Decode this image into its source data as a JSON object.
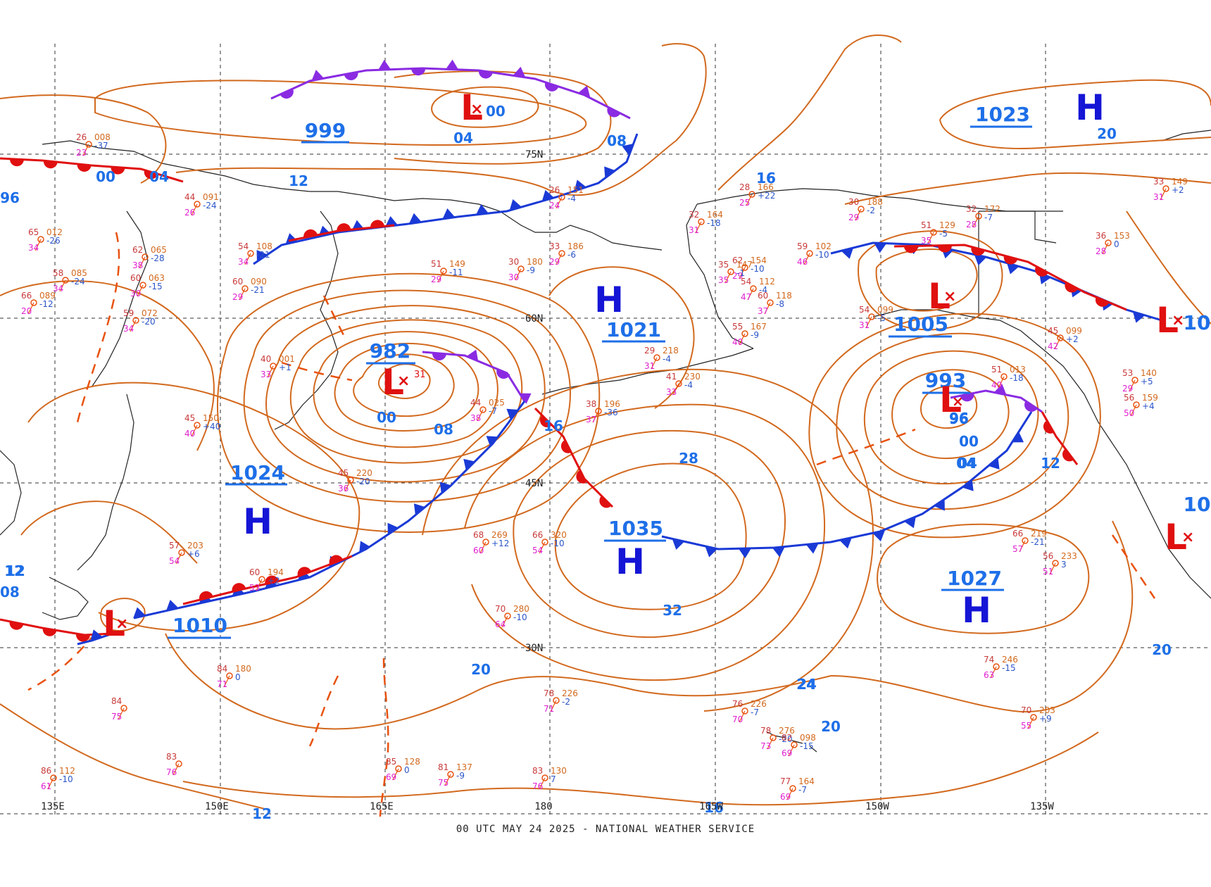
{
  "caption": "00 UTC MAY 24 2025 - NATIONAL WEATHER SERVICE",
  "colors": {
    "isobar": "#d2691e",
    "isobar_label": "#1e6fe8",
    "high": "#1515d6",
    "low": "#e01010",
    "cold_front": "#1a3ad6",
    "warm_front": "#e01010",
    "occluded_front": "#8a2be2",
    "trough": "#e8520f"
  },
  "latitude_labels": [
    "75N",
    "60N",
    "45N",
    "30N"
  ],
  "longitude_labels": [
    "135E",
    "150E",
    "165E",
    "180",
    "165W",
    "150W",
    "135W"
  ],
  "pressure_centers": [
    {
      "type": "H",
      "value": "1024"
    },
    {
      "type": "H",
      "value": "1021"
    },
    {
      "type": "H",
      "value": "1035"
    },
    {
      "type": "H",
      "value": "1027"
    },
    {
      "type": "H",
      "value": "1023"
    },
    {
      "type": "L",
      "value": "982"
    },
    {
      "type": "L",
      "value": "999"
    },
    {
      "type": "L",
      "value": "1005"
    },
    {
      "type": "L",
      "value": "993"
    },
    {
      "type": "L",
      "value": "1010"
    }
  ],
  "isobar_labels": [
    "00",
    "04",
    "08",
    "12",
    "16",
    "20",
    "24",
    "28",
    "32",
    "96",
    "00",
    "04",
    "08",
    "12",
    "16",
    "20",
    "24",
    "20",
    "16",
    "12",
    "04",
    "00",
    "08",
    "20",
    "16",
    "00",
    "96",
    "04",
    "12"
  ],
  "minor_center_labels": [
    "00",
    "31",
    "96",
    "H",
    "L",
    "L",
    "H"
  ],
  "edge_labels": [
    "10",
    "10",
    "12",
    "08"
  ],
  "stations": [
    {
      "t": "26",
      "d": "23",
      "p": "008",
      "c": "-37"
    },
    {
      "t": "44",
      "d": "26",
      "p": "091",
      "c": "-24"
    },
    {
      "t": "54",
      "d": "34",
      "p": "108",
      "c": "-21"
    },
    {
      "t": "60",
      "d": "29",
      "p": "090",
      "c": "-21"
    },
    {
      "t": "62",
      "d": "38",
      "p": "065",
      "c": "-28"
    },
    {
      "t": "60",
      "d": "30",
      "p": "063",
      "c": "-15"
    },
    {
      "t": "59",
      "d": "34",
      "p": "072",
      "c": "-20"
    },
    {
      "t": "58",
      "d": "34",
      "p": "085",
      "c": "-24"
    },
    {
      "t": "66",
      "d": "20",
      "p": "089",
      "c": "-12"
    },
    {
      "t": "65",
      "d": "34",
      "p": "012",
      "c": "-26"
    },
    {
      "t": "51",
      "d": "29",
      "p": "149",
      "c": "-11"
    },
    {
      "t": "30",
      "d": "30",
      "p": "180",
      "c": "-9"
    },
    {
      "t": "33",
      "d": "29",
      "p": "186",
      "c": "-6"
    },
    {
      "t": "26",
      "d": "24",
      "p": "151",
      "c": "-4"
    },
    {
      "t": "32",
      "d": "31",
      "p": "164",
      "c": "-18"
    },
    {
      "t": "28",
      "d": "25",
      "p": "166",
      "c": "+22"
    },
    {
      "t": "30",
      "d": "29",
      "p": "188",
      "c": "-2"
    },
    {
      "t": "32",
      "d": "28",
      "p": "172",
      "c": "-7"
    },
    {
      "t": "51",
      "d": "35",
      "p": "129",
      "c": "-5"
    },
    {
      "t": "33",
      "d": "31",
      "p": "149",
      "c": "+2"
    },
    {
      "t": "45",
      "d": "40",
      "p": "150",
      "c": "+40"
    },
    {
      "t": "40",
      "d": "33",
      "p": "001",
      "c": "+1"
    },
    {
      "t": "44",
      "d": "38",
      "p": "025",
      "c": "-7"
    },
    {
      "t": "45",
      "d": "36",
      "p": "220",
      "c": "-20"
    },
    {
      "t": "68",
      "d": "60",
      "p": "269",
      "c": "+12"
    },
    {
      "t": "66",
      "d": "54",
      "p": "320",
      "c": "-10"
    },
    {
      "t": "70",
      "d": "64",
      "p": "280",
      "c": "-10"
    },
    {
      "t": "60",
      "d": "53",
      "p": "194",
      "c": "+2"
    },
    {
      "t": "57",
      "d": "54",
      "p": "203",
      "c": "+6"
    },
    {
      "t": "78",
      "d": "71",
      "p": "226",
      "c": "-2"
    },
    {
      "t": "84",
      "d": "71",
      "p": "180",
      "c": "0"
    },
    {
      "t": "76",
      "d": "70",
      "p": "226",
      "c": "-7"
    },
    {
      "t": "78",
      "d": "73",
      "p": "276",
      "c": "-20"
    },
    {
      "t": "82",
      "d": "69",
      "p": "098",
      "c": "-15"
    },
    {
      "t": "77",
      "d": "69",
      "p": "164",
      "c": "-7"
    },
    {
      "t": "74",
      "d": "63",
      "p": "246",
      "c": "-15"
    },
    {
      "t": "70",
      "d": "55",
      "p": "203",
      "c": "+9"
    },
    {
      "t": "66",
      "d": "57",
      "p": "219",
      "c": "-21"
    },
    {
      "t": "56",
      "d": "51",
      "p": "233",
      "c": "3"
    },
    {
      "t": "51",
      "d": "40",
      "p": "013",
      "c": "-18"
    },
    {
      "t": "54",
      "d": "47",
      "p": "112",
      "c": "-4"
    },
    {
      "t": "62",
      "d": "29",
      "p": "154",
      "c": "-10"
    },
    {
      "t": "59",
      "d": "46",
      "p": "102",
      "c": "-10"
    },
    {
      "t": "54",
      "d": "31",
      "p": "099",
      "c": "-5"
    },
    {
      "t": "36",
      "d": "28",
      "p": "153",
      "c": "0"
    },
    {
      "t": "45",
      "d": "42",
      "p": "099",
      "c": "+2"
    },
    {
      "t": "53",
      "d": "29",
      "p": "140",
      "c": "+5"
    },
    {
      "t": "56",
      "d": "50",
      "p": "159",
      "c": "+4"
    },
    {
      "t": "83",
      "d": "76",
      "p": "130",
      "c": "7"
    },
    {
      "t": "85",
      "d": "69",
      "p": "128",
      "c": "0"
    },
    {
      "t": "81",
      "d": "75",
      "p": "137",
      "c": "-9"
    },
    {
      "t": "86",
      "d": "61",
      "p": "112",
      "c": "-10"
    },
    {
      "t": "84",
      "d": "75",
      "p": "",
      "c": ""
    },
    {
      "t": "83",
      "d": "76",
      "p": "",
      "c": ""
    },
    {
      "t": "41",
      "d": "33",
      "p": "230",
      "c": "-4"
    },
    {
      "t": "38",
      "d": "37",
      "p": "196",
      "c": "-36"
    },
    {
      "t": "29",
      "d": "31",
      "p": "218",
      "c": "-4"
    },
    {
      "t": "35",
      "d": "35",
      "p": "147",
      "c": "-1"
    },
    {
      "t": "55",
      "d": "40",
      "p": "167",
      "c": "-9"
    },
    {
      "t": "60",
      "d": "37",
      "p": "118",
      "c": "-8"
    }
  ]
}
